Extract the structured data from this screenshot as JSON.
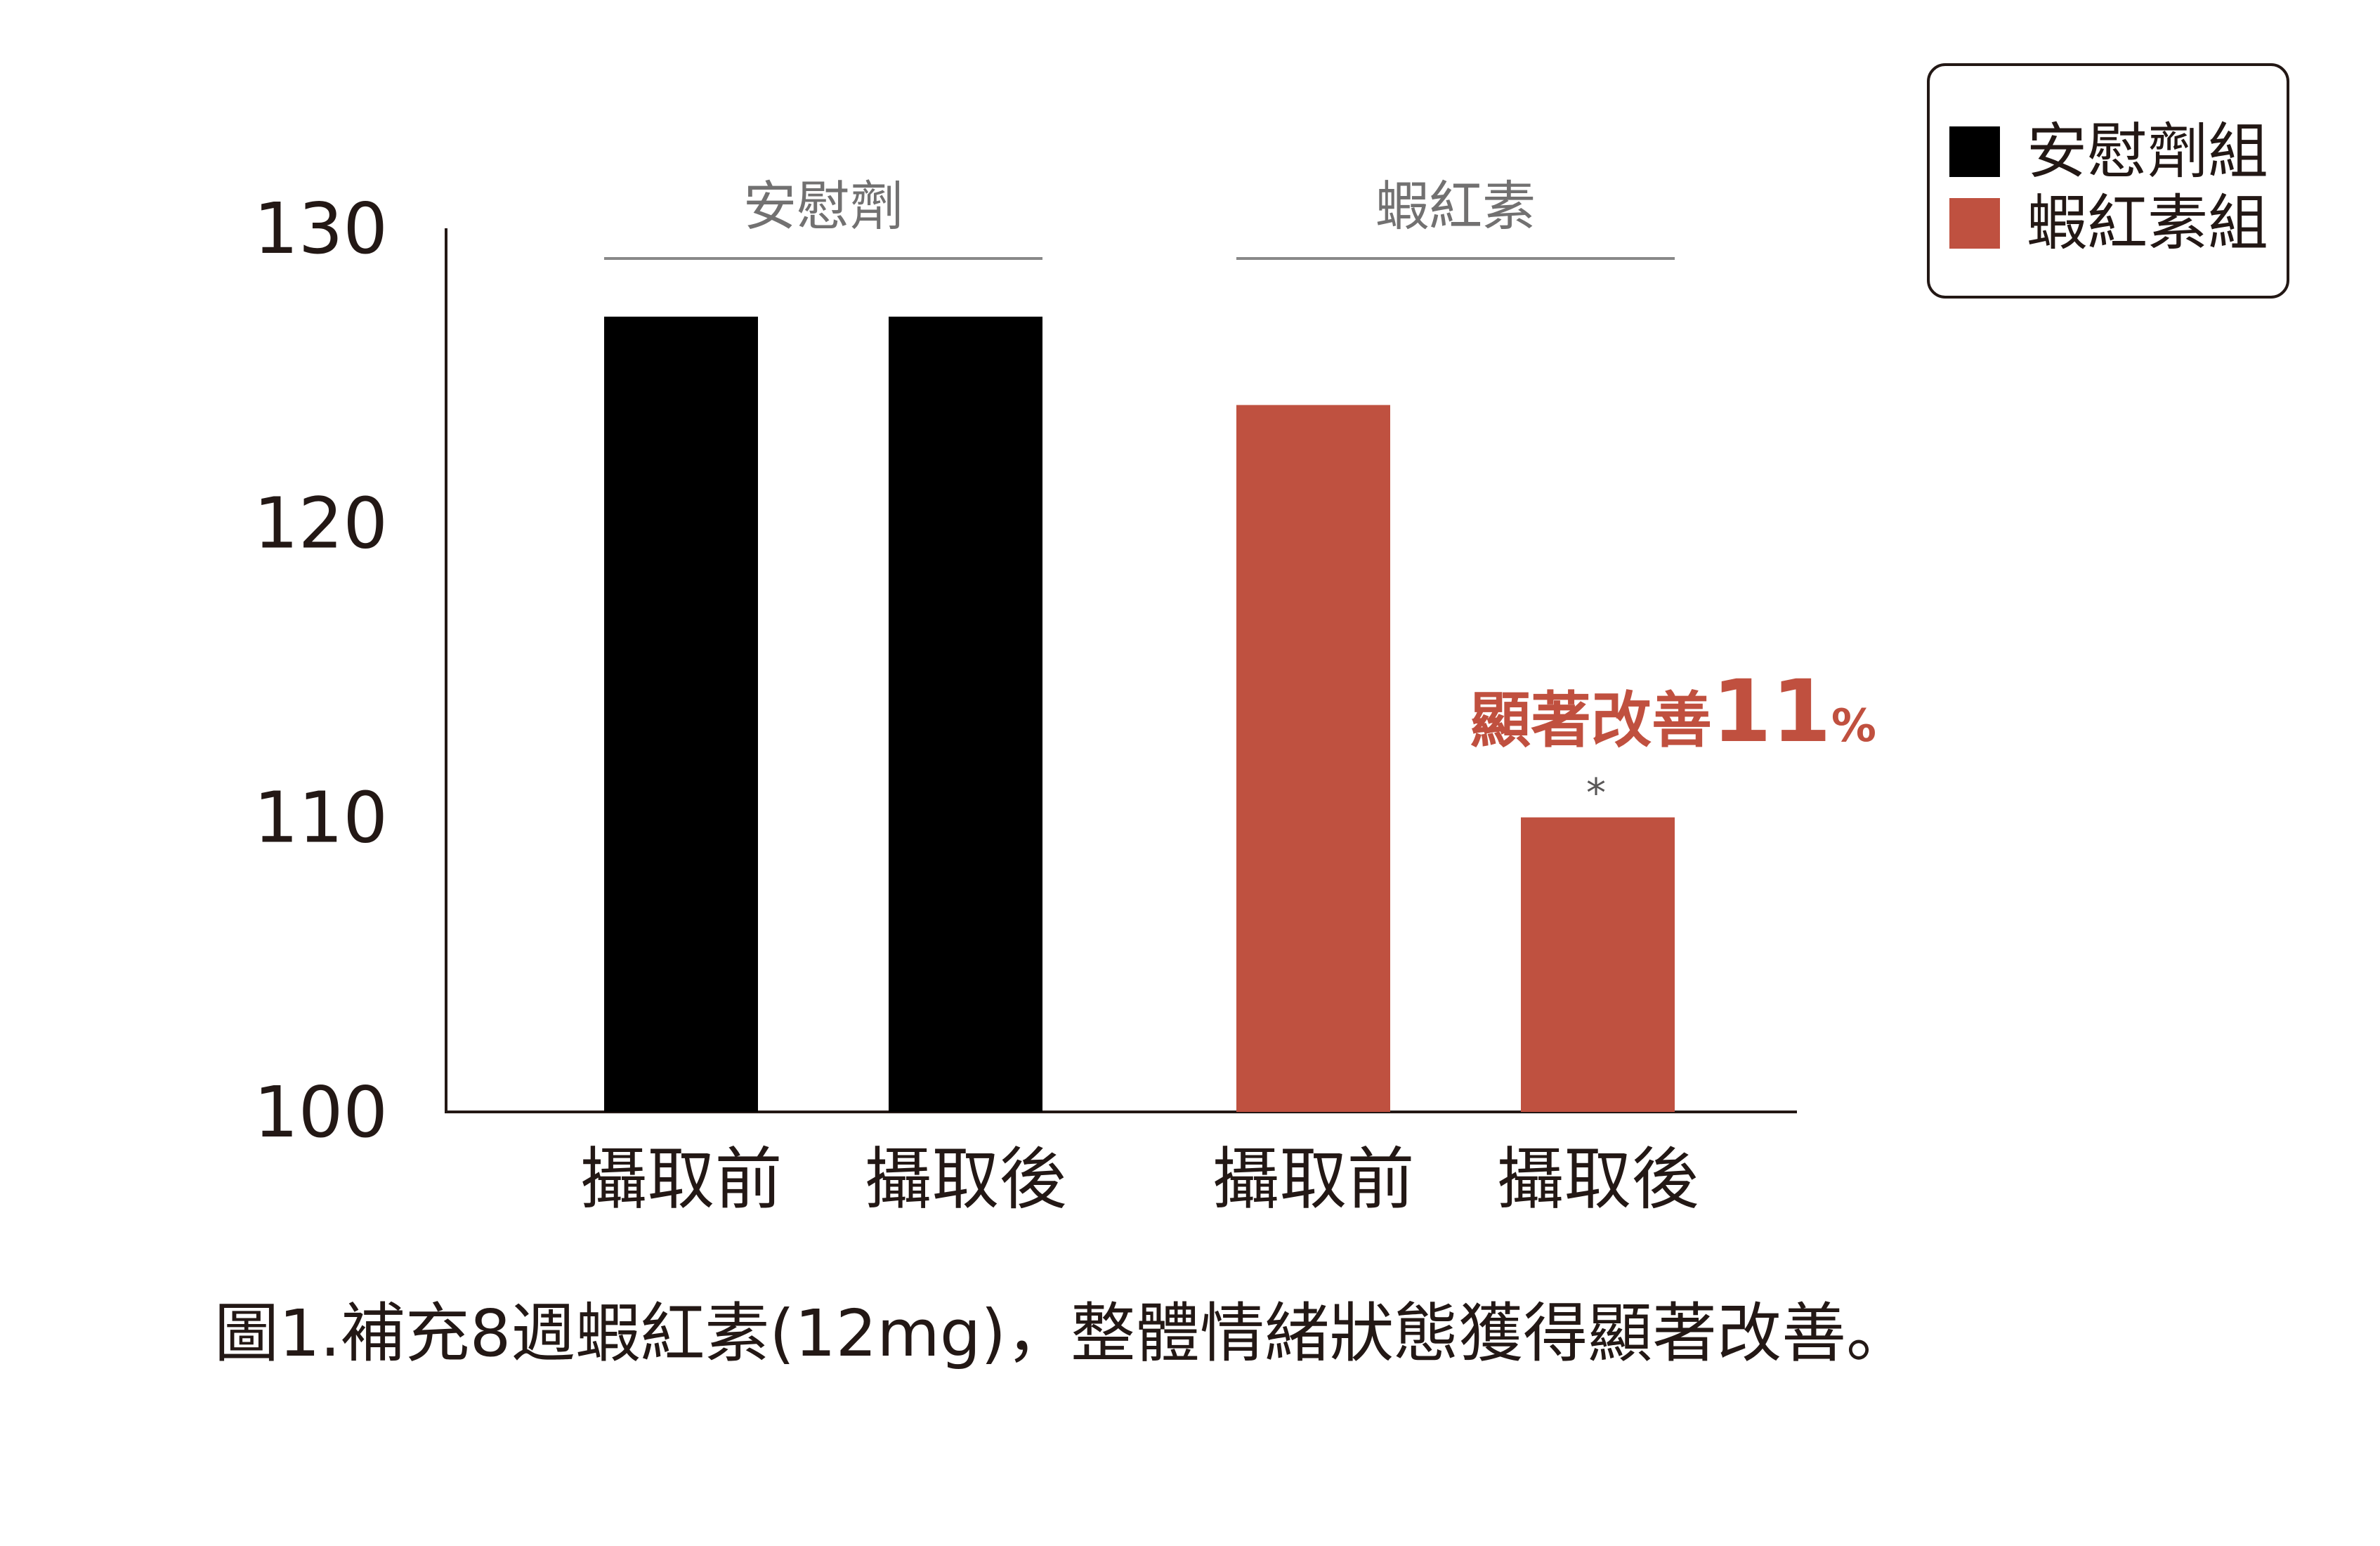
{
  "chart_data": {
    "type": "bar",
    "categories": [
      "攝取前",
      "攝取後",
      "攝取前",
      "攝取後"
    ],
    "groups": [
      {
        "label": "安慰劑",
        "series": "安慰劑組",
        "categories": [
          "攝取前",
          "攝取後"
        ],
        "values": [
          127,
          127
        ]
      },
      {
        "label": "蝦紅素",
        "series": "蝦紅素組",
        "categories": [
          "攝取前",
          "攝取後"
        ],
        "values": [
          124,
          110
        ]
      }
    ],
    "series": [
      {
        "name": "安慰劑組",
        "color": "#000000",
        "values": [
          127,
          127,
          null,
          null
        ]
      },
      {
        "name": "蝦紅素組",
        "color": "#bf5140",
        "values": [
          null,
          null,
          124,
          110
        ]
      }
    ],
    "y_ticks": [
      "100",
      "110",
      "120",
      "130"
    ],
    "ylim": [
      100,
      130
    ],
    "title": "",
    "xlabel": "",
    "ylabel": "",
    "grid": false,
    "legend_position": "top-right",
    "annotation": {
      "text": "顯著改善",
      "number": "11",
      "unit": "%",
      "star": "*",
      "target_bar": 3
    },
    "caption": "圖1.補充8週蝦紅素(12mg)，整體情緒狀態獲得顯著改善。"
  }
}
